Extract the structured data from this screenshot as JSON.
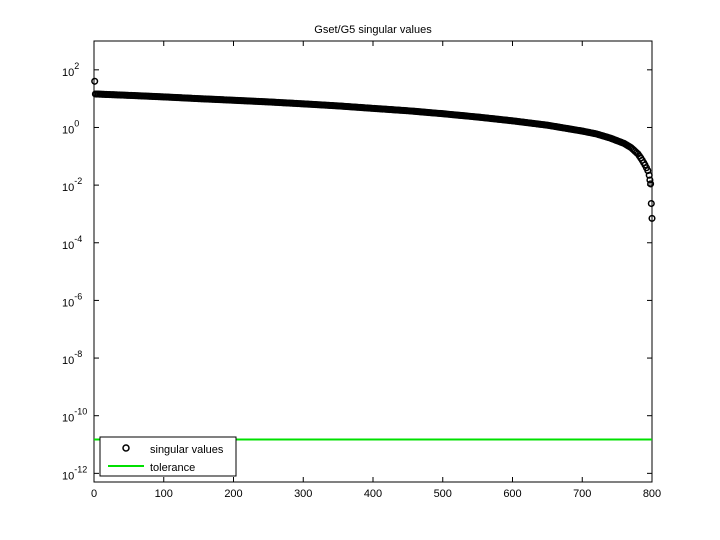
{
  "chart_data": {
    "type": "scatter",
    "title": "Gset/G5 singular values",
    "xlabel": "",
    "ylabel": "",
    "xlim": [
      0,
      800
    ],
    "ylim_exponent": [
      -12.3,
      3
    ],
    "yscale": "log",
    "x_ticks": [
      "0",
      "100",
      "200",
      "300",
      "400",
      "500",
      "600",
      "700",
      "800"
    ],
    "y_ticks": [
      {
        "base": "10",
        "exp": "2"
      },
      {
        "base": "10",
        "exp": "0"
      },
      {
        "base": "10",
        "exp": "-2"
      },
      {
        "base": "10",
        "exp": "-4"
      },
      {
        "base": "10",
        "exp": "-6"
      },
      {
        "base": "10",
        "exp": "-8"
      },
      {
        "base": "10",
        "exp": "-10"
      },
      {
        "base": "10",
        "exp": "-12"
      }
    ],
    "grid": false,
    "legend_position": "bottom-left",
    "series": [
      {
        "name": "singular values",
        "marker": "circle",
        "color": "#000000",
        "x": [
          1,
          2,
          50,
          100,
          150,
          200,
          250,
          300,
          350,
          400,
          450,
          500,
          550,
          600,
          650,
          700,
          720,
          740,
          760,
          770,
          780,
          785,
          790,
          794,
          796,
          797,
          798,
          799,
          800
        ],
        "y": [
          40,
          14.5,
          13,
          11.5,
          10,
          8.8,
          7.7,
          6.6,
          5.6,
          4.6,
          3.8,
          3.0,
          2.3,
          1.7,
          1.2,
          0.75,
          0.6,
          0.43,
          0.28,
          0.2,
          0.12,
          0.08,
          0.05,
          0.032,
          0.022,
          0.015,
          0.011,
          0.0023,
          0.0007
        ]
      },
      {
        "name": "tolerance",
        "type": "line",
        "color": "#00e000",
        "value": 1.5e-11
      }
    ]
  }
}
